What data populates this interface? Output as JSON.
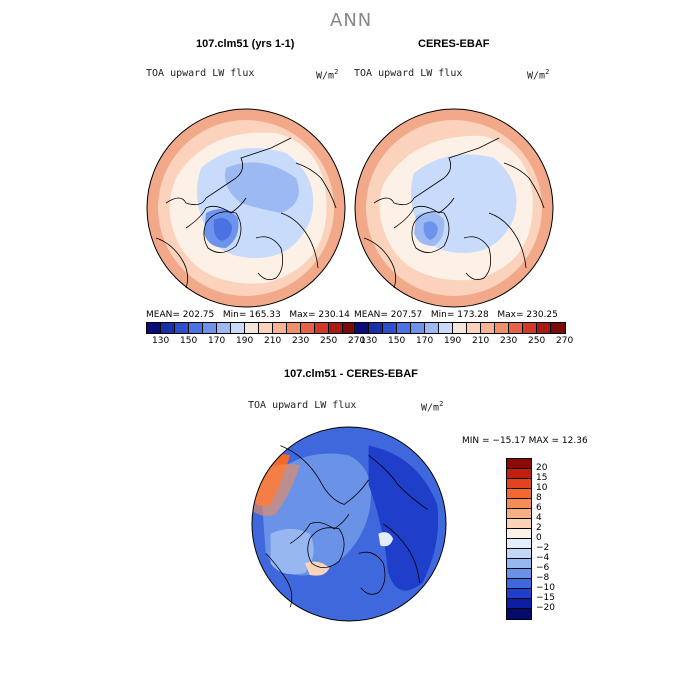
{
  "page": {
    "title": "ANN"
  },
  "panel_left": {
    "title": "107.clm51 (yrs 1-1)",
    "variable": "TOA upward LW flux",
    "units": "W/m",
    "units_exp": "2",
    "mean_label": "MEAN=",
    "mean": "202.75",
    "min_label": "Min=",
    "min": "165.33",
    "max_label": "Max=",
    "max": "230.14"
  },
  "panel_right": {
    "title": "CERES-EBAF",
    "variable": "TOA upward LW flux",
    "units": "W/m",
    "units_exp": "2",
    "mean_label": "MEAN=",
    "mean": "207.57",
    "min_label": "Min=",
    "min": "173.28",
    "max_label": "Max=",
    "max": "230.25"
  },
  "panel_diff": {
    "title": "107.clm51 - CERES-EBAF",
    "variable": "TOA upward LW flux",
    "units": "W/m",
    "units_exp": "2",
    "stats": "MIN = −15.17  MAX =  12.36"
  },
  "colorbar_abs": {
    "labels": [
      "130",
      "150",
      "170",
      "190",
      "210",
      "230",
      "250",
      "270"
    ],
    "colors": [
      "#0b0b7a",
      "#1a2ea8",
      "#2d4fd0",
      "#4a72e3",
      "#6d93ec",
      "#9cb9f4",
      "#c8dbfa",
      "#f2e6dc",
      "#fcd2bd",
      "#f7b598",
      "#ef8f6c",
      "#e56448",
      "#d13a2a",
      "#a81a14",
      "#7a0c08"
    ]
  },
  "colorbar_diff": {
    "labels": [
      "20",
      "15",
      "10",
      "8",
      "6",
      "4",
      "2",
      "0",
      "−2",
      "−4",
      "−6",
      "−8",
      "−10",
      "−15",
      "−20"
    ],
    "colors": [
      "#8c0a05",
      "#c2200e",
      "#e3441f",
      "#f2692e",
      "#f58c55",
      "#f7b086",
      "#fad3ba",
      "#fdf1e6",
      "#e3edfb",
      "#c2d6f6",
      "#97b7f0",
      "#6a92e6",
      "#3f68dc",
      "#1f3ec9",
      "#0d1ea3",
      "#020a6c"
    ]
  },
  "map_colors": {
    "abs_warm": "#f2a98a",
    "abs_mid": "#fbd3bd",
    "abs_light": "#fdf0e6",
    "abs_cool": "#c8dbfa",
    "abs_blue": "#9cb9f4",
    "abs_deep": "#6d93ec",
    "diff_blue": "#3f68dc",
    "diff_mid": "#6a92e6",
    "diff_deep": "#1f3ec9",
    "diff_warm": "#f2692e"
  }
}
